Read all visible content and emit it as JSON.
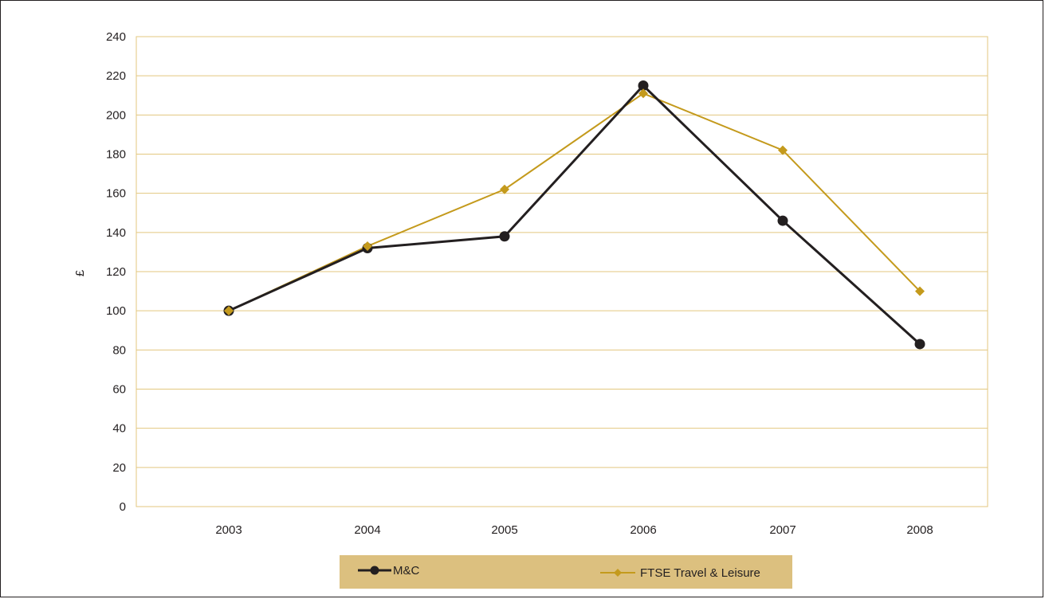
{
  "chart_data": {
    "type": "line",
    "ylabel": "£",
    "ylim": [
      0,
      240
    ],
    "yticks": [
      0,
      20,
      40,
      60,
      80,
      100,
      120,
      140,
      160,
      180,
      200,
      220,
      240
    ],
    "categories": [
      "2003",
      "2004",
      "2005",
      "2006",
      "2007",
      "2008"
    ],
    "series": [
      {
        "name": "M&C",
        "values": [
          100,
          132,
          138,
          215,
          146,
          83
        ],
        "color": "#231f20",
        "marker": "circle"
      },
      {
        "name": "FTSE Travel & Leisure",
        "values": [
          100,
          133,
          162,
          211,
          182,
          110
        ],
        "color": "#c49a1c",
        "marker": "diamond"
      }
    ],
    "grid": true,
    "grid_color": "#e3c77f",
    "legend_position": "bottom",
    "legend_background": "#dcc07f"
  }
}
